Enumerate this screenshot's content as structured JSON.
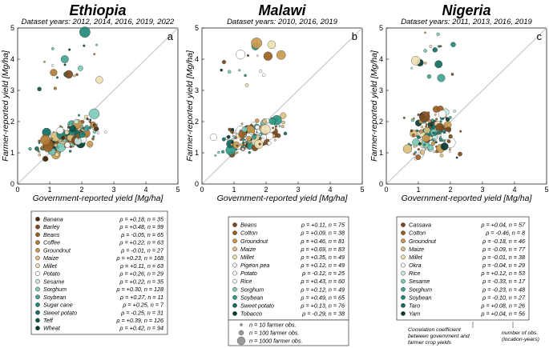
{
  "chart_data": [
    {
      "type": "scatter",
      "country": "Ethiopia",
      "subtitle": "Dataset years: 2012, 2014, 2016, 2019, 2022",
      "panel_label": "a",
      "xlabel": "Government-reported yield [Mg/ha]",
      "ylabel": "Farmer-reported yield [Mg/ha]",
      "xlim": [
        0,
        5
      ],
      "ylim": [
        0,
        5
      ],
      "xticks": [
        0,
        1,
        2,
        3,
        4,
        5
      ],
      "yticks": [
        0,
        1,
        2,
        3,
        4,
        5
      ],
      "legend": [
        {
          "crop": "Banana",
          "stat": "ρ = +0.18, n = 35",
          "color": "#4a2a0c"
        },
        {
          "crop": "Barley",
          "stat": "ρ = +0.48, n = 99",
          "color": "#7d4a1c"
        },
        {
          "crop": "Beans",
          "stat": "ρ = -0.05, n = 65",
          "color": "#9c5f22"
        },
        {
          "crop": "Coffee",
          "stat": "ρ = +0.22, n = 63",
          "color": "#b47a33"
        },
        {
          "crop": "Groundnut",
          "stat": "ρ = -0.01, n = 27",
          "color": "#c89a4e"
        },
        {
          "crop": "Maize",
          "stat": "ρ = +0.23, n = 168",
          "color": "#dcc081"
        },
        {
          "crop": "Millet",
          "stat": "ρ = +0.11, n = 63",
          "color": "#efe0b2"
        },
        {
          "crop": "Potato",
          "stat": "ρ = +0.26, n = 29",
          "color": "#ffffff"
        },
        {
          "crop": "Sesame",
          "stat": "ρ = +0.22, n = 35",
          "color": "#c8e9e2"
        },
        {
          "crop": "Sorghum",
          "stat": "ρ = +0.30, n = 128",
          "color": "#7ccab8"
        },
        {
          "crop": "Soybean",
          "stat": "ρ = +0.27, n = 11",
          "color": "#43a593"
        },
        {
          "crop": "Sugar cane",
          "stat": "ρ = +0.25, n = 7",
          "color": "#1f8a78"
        },
        {
          "crop": "Sweet potato",
          "stat": "ρ = -0.25, n = 31",
          "color": "#116d5e"
        },
        {
          "crop": "Teff",
          "stat": "ρ = +0.39, n = 126",
          "color": "#0b5446"
        },
        {
          "crop": "Wheat",
          "stat": "ρ = +0.42, n = 94",
          "color": "#053a30"
        }
      ]
    },
    {
      "type": "scatter",
      "country": "Malawi",
      "subtitle": "Dataset years: 2010, 2016, 2019",
      "panel_label": "b",
      "xlabel": "Government-reported yield [Mg/ha]",
      "ylabel": "Farmer-reported yield [Mg/ha]",
      "xlim": [
        0,
        5
      ],
      "ylim": [
        0,
        5
      ],
      "xticks": [
        0,
        1,
        2,
        3,
        4,
        5
      ],
      "yticks": [
        0,
        1,
        2,
        3,
        4,
        5
      ],
      "legend": [
        {
          "crop": "Beans",
          "stat": "ρ = +0.11, n = 75",
          "color": "#7d4a1c"
        },
        {
          "crop": "Cotton",
          "stat": "ρ = +0.09, n = 38",
          "color": "#9c5f22"
        },
        {
          "crop": "Groundnut",
          "stat": "ρ = +0.46, n = 81",
          "color": "#c89a4e"
        },
        {
          "crop": "Maize",
          "stat": "ρ = +0.69, n = 83",
          "color": "#dcc081"
        },
        {
          "crop": "Millet",
          "stat": "ρ = +0.35, n = 49",
          "color": "#efe0b2"
        },
        {
          "crop": "Pigeon pea",
          "stat": "ρ = +0.12, n = 49",
          "color": "#ffffff"
        },
        {
          "crop": "Potato",
          "stat": "ρ = -0.12, n = 25",
          "color": "#ffffff"
        },
        {
          "crop": "Rice",
          "stat": "ρ = +0.43, n = 60",
          "color": "#ffffff"
        },
        {
          "crop": "Sorghum",
          "stat": "ρ = +0.12, n = 49",
          "color": "#7ccab8"
        },
        {
          "crop": "Soybean",
          "stat": "ρ = +0.49, n = 65",
          "color": "#2e9a86"
        },
        {
          "crop": "Sweet potato",
          "stat": "ρ = +0.13, n = 76",
          "color": "#116d5e"
        },
        {
          "crop": "Tobacco",
          "stat": "ρ = -0.29, n = 38",
          "color": "#053a30"
        }
      ],
      "size_legend": [
        "n = 10 farmer obs.",
        "n = 100 farmer obs.",
        "n = 1000 farmer obs."
      ]
    },
    {
      "type": "scatter",
      "country": "Nigeria",
      "subtitle": "Dataset years: 2011, 2013, 2016, 2019",
      "panel_label": "c",
      "xlabel": "Government-reported yield [Mg/ha]",
      "ylabel": "Farmer-reported yield [Mg/ha]",
      "xlim": [
        0,
        5
      ],
      "ylim": [
        0,
        5
      ],
      "xticks": [
        0,
        1,
        2,
        3,
        4,
        5
      ],
      "yticks": [
        0,
        1,
        2,
        3,
        4,
        5
      ],
      "legend": [
        {
          "crop": "Cassava",
          "stat": "ρ = +0.04, n = 57",
          "color": "#7d4a1c"
        },
        {
          "crop": "Cotton",
          "stat": "ρ = -0.46, n = 8",
          "color": "#9c5f22"
        },
        {
          "crop": "Groundnut",
          "stat": "ρ = -0.18, n = 46",
          "color": "#c89a4e"
        },
        {
          "crop": "Maize",
          "stat": "ρ = -0.09, n = 77",
          "color": "#dcc081"
        },
        {
          "crop": "Millet",
          "stat": "ρ = -0.01, n = 38",
          "color": "#efe0b2"
        },
        {
          "crop": "Okra",
          "stat": "ρ = -0.04, n = 29",
          "color": "#ffffff"
        },
        {
          "crop": "Rice",
          "stat": "ρ = +0.12, n = 53",
          "color": "#c8e9e2"
        },
        {
          "crop": "Sesame",
          "stat": "ρ = -0.33, n = 17",
          "color": "#7ccab8"
        },
        {
          "crop": "Sorghum",
          "stat": "ρ = -0.23, n = 48",
          "color": "#43a593"
        },
        {
          "crop": "Soybean",
          "stat": "ρ = -0.10, n = 27",
          "color": "#1f8a78"
        },
        {
          "crop": "Taro",
          "stat": "ρ = +0.08, n = 26",
          "color": "#116d5e"
        },
        {
          "crop": "Yam",
          "stat": "ρ = +0.04, n = 56",
          "color": "#053a30"
        }
      ],
      "annotations": [
        "Correlation coefficient between government and farmer crop yields",
        "number of obs. (location-years)"
      ]
    }
  ]
}
